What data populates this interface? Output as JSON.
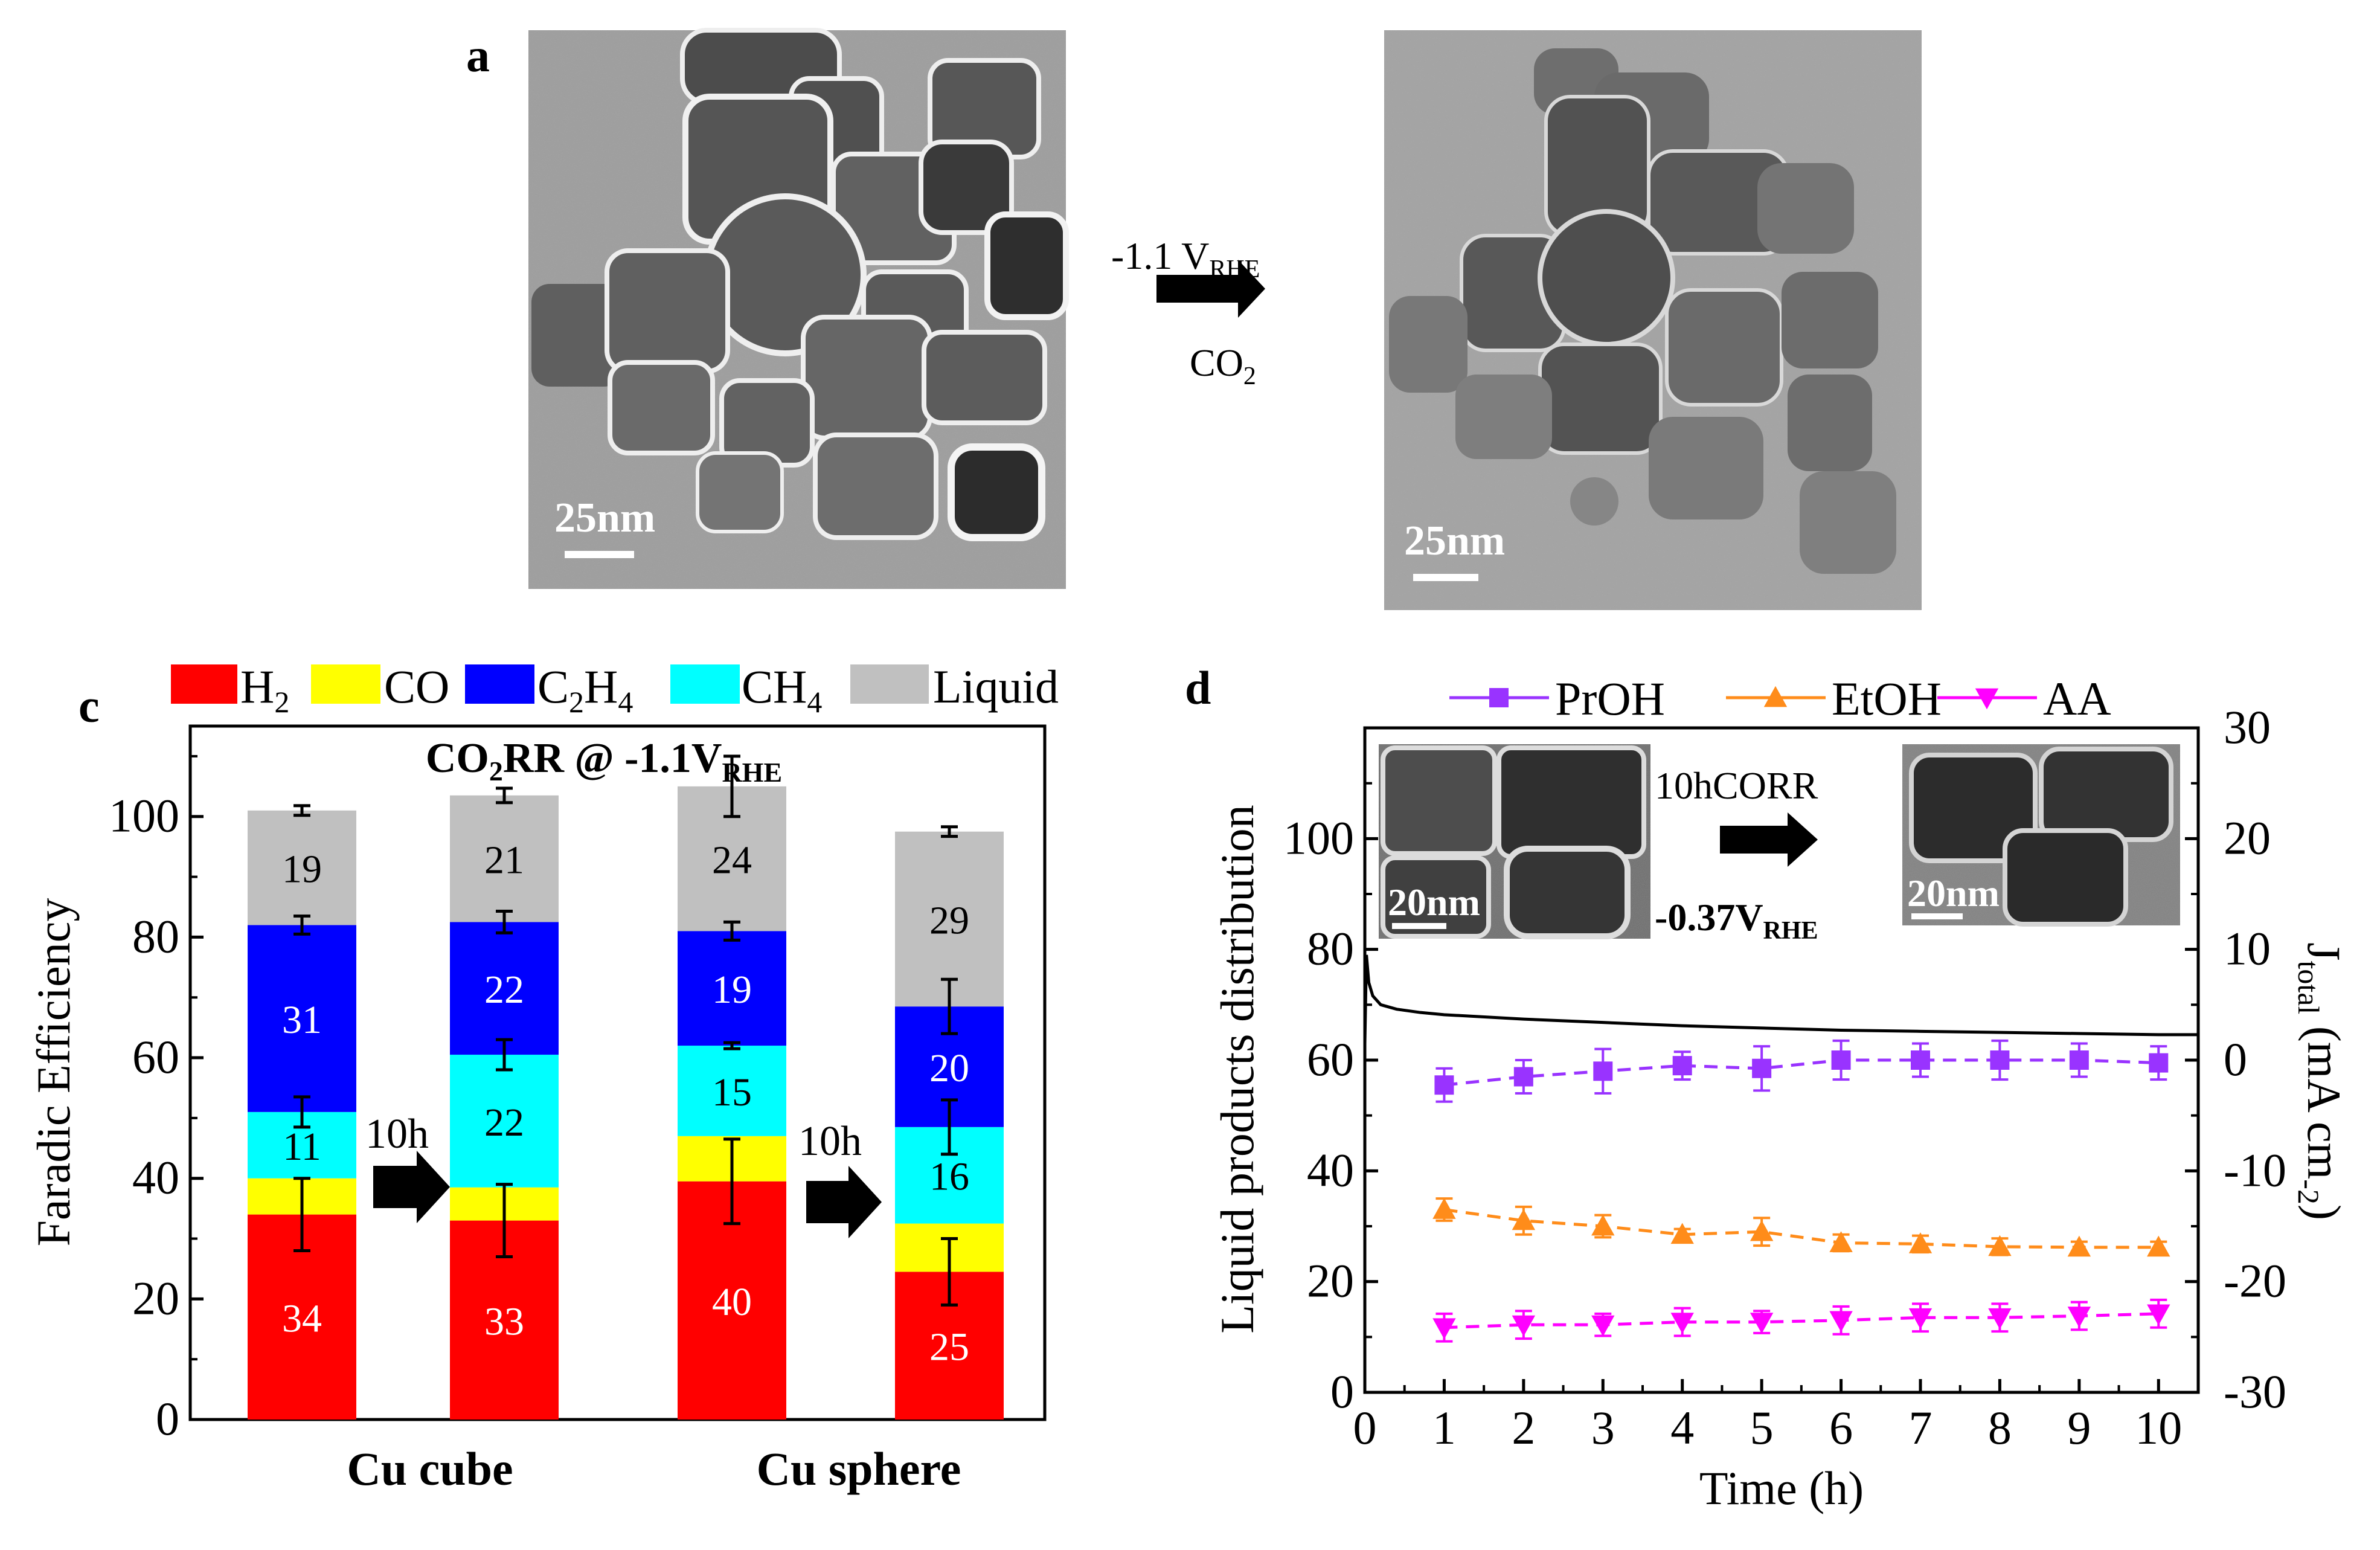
{
  "panel_a": {
    "label": "a",
    "arrow_voltage": "-1.1 V",
    "arrow_voltage_sub": "RHE",
    "arrow_gas": "CO",
    "arrow_gas_sub": "2",
    "scale_left": "25nm",
    "scale_right": "25nm"
  },
  "panel_c": {
    "label": "c"
  },
  "panel_d": {
    "label": "d",
    "inset_scale_left": "20nm",
    "inset_scale_right": "20nm",
    "inset_arrow_top": "10hCORR",
    "inset_arrow_bottom": "-0.37V",
    "inset_arrow_bottom_sub": "RHE"
  },
  "colors": {
    "H2": "#ff0000",
    "CO": "#ffff00",
    "C2H4": "#0000ff",
    "CH4": "#00ffff",
    "Liquid": "#c0c0c0",
    "PrOH": "#9933ff",
    "EtOH": "#ff8c1a",
    "AA": "#ff00ff"
  },
  "chart_data": [
    {
      "type": "bar",
      "stacked": true,
      "title": "CO2RR @ -1.1VRHE",
      "title_parts": {
        "a": "CO",
        "a_sub": "2",
        "b": "RR @ -1.1V",
        "b_sub": "RHE"
      },
      "ylabel": "Faradic Efficiency",
      "ylim": [
        0,
        115
      ],
      "yticks": [
        0,
        20,
        40,
        60,
        80,
        100
      ],
      "legend": [
        {
          "key": "H2",
          "label": "H",
          "sub": "2"
        },
        {
          "key": "CO",
          "label": "CO",
          "sub": ""
        },
        {
          "key": "C2H4",
          "label": "C",
          "sub": "2",
          "label2": "H",
          "sub2": "4"
        },
        {
          "key": "CH4",
          "label": "CH",
          "sub": "4"
        },
        {
          "key": "Liquid",
          "label": "Liquid",
          "sub": ""
        }
      ],
      "group_labels": [
        "Cu cube",
        "Cu sphere"
      ],
      "arrow_label": "10h",
      "bars": [
        {
          "group": "Cu cube",
          "stage": "before",
          "H2": 34,
          "CO": 6,
          "C2H4": 31,
          "CH4": 11,
          "Liquid": 19,
          "labels": {
            "H2": "34",
            "CH4": "11",
            "C2H4": "31",
            "Liquid": "19"
          },
          "errors": {
            "H2": 6,
            "CH4": 2.5,
            "C2H4": 1.5,
            "Liquid": 0.8
          }
        },
        {
          "group": "Cu cube",
          "stage": "after 10h",
          "H2": 33,
          "CO": 5.5,
          "C2H4": 22,
          "CH4": 22,
          "Liquid": 21,
          "labels": {
            "H2": "33",
            "CH4": "22",
            "C2H4": "22",
            "Liquid": "21"
          },
          "errors": {
            "H2": 6,
            "CH4": 2.5,
            "C2H4": 1.8,
            "Liquid": 1.2
          }
        },
        {
          "group": "Cu sphere",
          "stage": "before",
          "H2": 39.5,
          "CO": 7.5,
          "C2H4": 19,
          "CH4": 15,
          "Liquid": 24,
          "labels": {
            "H2": "40",
            "CH4": "15",
            "C2H4": "19",
            "Liquid": "24"
          },
          "errors": {
            "H2": 7,
            "CH4": 0.5,
            "C2H4": 1.5,
            "Liquid": 5
          }
        },
        {
          "group": "Cu sphere",
          "stage": "after 10h",
          "H2": 24.5,
          "CO": 8,
          "C2H4": 20,
          "CH4": 16,
          "Liquid": 29,
          "labels": {
            "H2": "25",
            "CH4": "16",
            "C2H4": "20",
            "Liquid": "29"
          },
          "errors": {
            "H2": 5.5,
            "CH4": 4.5,
            "C2H4": 4.5,
            "Liquid": 0.8
          }
        }
      ]
    },
    {
      "type": "line",
      "xlabel": "Time (h)",
      "ylabel": "Liquid products distribution",
      "y2label": "J",
      "y2label_sub": "total",
      "y2label_unit": "(mA cm",
      "y2label_unit_sub": "-2",
      "y2label_end": ")",
      "xlim": [
        0,
        10.5
      ],
      "ylim": [
        0,
        120
      ],
      "y2lim": [
        -30,
        30
      ],
      "xticks": [
        0,
        1,
        2,
        3,
        4,
        5,
        6,
        7,
        8,
        9,
        10
      ],
      "yticks": [
        0,
        20,
        40,
        60,
        80,
        100
      ],
      "y2ticks": [
        -30,
        -20,
        -10,
        0,
        10,
        20,
        30
      ],
      "series": [
        {
          "name": "PrOH",
          "marker": "square",
          "x": [
            1,
            2,
            3,
            4,
            5,
            6,
            7,
            8,
            9,
            10
          ],
          "values": [
            55.5,
            57,
            58,
            59,
            58.5,
            60,
            60,
            60,
            60,
            59.5
          ],
          "errors": [
            3,
            3,
            4,
            2.5,
            4,
            3.5,
            3,
            3.5,
            3,
            3
          ]
        },
        {
          "name": "EtOH",
          "marker": "triangle-up",
          "x": [
            1,
            2,
            3,
            4,
            5,
            6,
            7,
            8,
            9,
            10
          ],
          "values": [
            33,
            31,
            30,
            28.5,
            29,
            27,
            26.8,
            26.3,
            26.2,
            26.2
          ],
          "errors": [
            2,
            2.5,
            2,
            1,
            2.5,
            1.5,
            1.5,
            1.5,
            1,
            1
          ]
        },
        {
          "name": "AA",
          "marker": "triangle-down",
          "x": [
            1,
            2,
            3,
            4,
            5,
            6,
            7,
            8,
            9,
            10
          ],
          "values": [
            11.7,
            12.2,
            12.2,
            12.7,
            12.7,
            13,
            13.5,
            13.5,
            13.8,
            14.2
          ],
          "errors": [
            2.5,
            2.5,
            2,
            2.5,
            2,
            2.5,
            2.5,
            2.5,
            2.5,
            2.5
          ]
        }
      ],
      "current_trace": {
        "axis": "y2",
        "time": [
          0,
          0.02,
          0.05,
          0.1,
          0.2,
          0.4,
          0.7,
          1,
          2,
          3,
          4,
          5,
          6,
          7,
          8,
          9,
          10,
          10.5
        ],
        "values": [
          1.5,
          9.5,
          7,
          5.8,
          5,
          4.6,
          4.3,
          4.1,
          3.7,
          3.4,
          3.1,
          2.9,
          2.7,
          2.6,
          2.5,
          2.4,
          2.3,
          2.3
        ]
      }
    }
  ]
}
